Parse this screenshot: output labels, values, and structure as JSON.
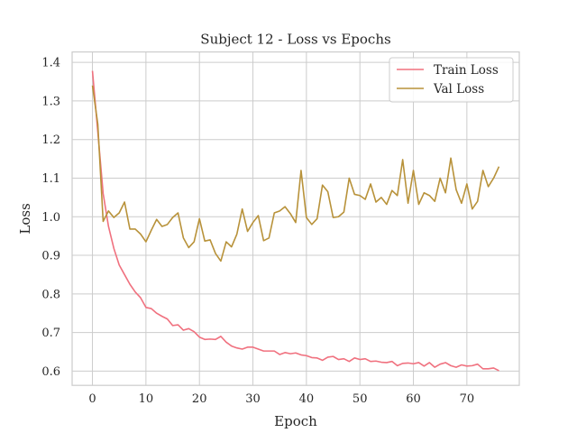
{
  "chart_data": {
    "type": "line",
    "title": "Subject 12 - Loss vs Epochs",
    "xlabel": "Epoch",
    "ylabel": "Loss",
    "xlim": [
      -3.8,
      79.8
    ],
    "ylim": [
      0.563,
      1.427
    ],
    "xticks": [
      0,
      10,
      20,
      30,
      40,
      50,
      60,
      70
    ],
    "yticks": [
      0.6,
      0.7,
      0.8,
      0.9,
      1.0,
      1.1,
      1.2,
      1.3,
      1.4
    ],
    "grid": true,
    "legend_position": "top-right",
    "x": [
      0,
      1,
      2,
      3,
      4,
      5,
      6,
      7,
      8,
      9,
      10,
      11,
      12,
      13,
      14,
      15,
      16,
      17,
      18,
      19,
      20,
      21,
      22,
      23,
      24,
      25,
      26,
      27,
      28,
      29,
      30,
      31,
      32,
      33,
      34,
      35,
      36,
      37,
      38,
      39,
      40,
      41,
      42,
      43,
      44,
      45,
      46,
      47,
      48,
      49,
      50,
      51,
      52,
      53,
      54,
      55,
      56,
      57,
      58,
      59,
      60,
      61,
      62,
      63,
      64,
      65,
      66,
      67,
      68,
      69,
      70,
      71,
      72,
      73,
      74,
      75,
      76
    ],
    "series": [
      {
        "name": "Train Loss",
        "color": "#f0717f",
        "values": [
          1.378,
          1.22,
          1.06,
          0.975,
          0.918,
          0.875,
          0.85,
          0.825,
          0.805,
          0.79,
          0.765,
          0.762,
          0.75,
          0.742,
          0.735,
          0.718,
          0.72,
          0.706,
          0.71,
          0.702,
          0.688,
          0.682,
          0.683,
          0.682,
          0.69,
          0.675,
          0.665,
          0.66,
          0.657,
          0.662,
          0.662,
          0.657,
          0.652,
          0.652,
          0.652,
          0.643,
          0.648,
          0.645,
          0.647,
          0.642,
          0.64,
          0.635,
          0.634,
          0.628,
          0.636,
          0.638,
          0.63,
          0.632,
          0.625,
          0.634,
          0.63,
          0.632,
          0.625,
          0.626,
          0.623,
          0.622,
          0.625,
          0.614,
          0.62,
          0.621,
          0.619,
          0.622,
          0.613,
          0.622,
          0.61,
          0.618,
          0.622,
          0.614,
          0.61,
          0.616,
          0.613,
          0.614,
          0.618,
          0.606,
          0.606,
          0.608,
          0.601
        ]
      },
      {
        "name": "Val Loss",
        "color": "#b8923a",
        "values": [
          1.34,
          1.24,
          0.988,
          1.015,
          0.998,
          1.01,
          1.038,
          0.968,
          0.968,
          0.955,
          0.935,
          0.965,
          0.993,
          0.975,
          0.98,
          0.998,
          1.01,
          0.945,
          0.92,
          0.935,
          0.995,
          0.937,
          0.94,
          0.905,
          0.885,
          0.935,
          0.922,
          0.955,
          1.02,
          0.962,
          0.985,
          1.003,
          0.938,
          0.945,
          1.01,
          1.015,
          1.026,
          1.008,
          0.985,
          1.12,
          0.998,
          0.98,
          0.995,
          1.082,
          1.065,
          0.998,
          1.0,
          1.012,
          1.1,
          1.058,
          1.055,
          1.045,
          1.085,
          1.038,
          1.05,
          1.032,
          1.068,
          1.055,
          1.148,
          1.035,
          1.12,
          1.032,
          1.062,
          1.055,
          1.04,
          1.1,
          1.062,
          1.152,
          1.07,
          1.035,
          1.085,
          1.02,
          1.04,
          1.12,
          1.078,
          1.1,
          1.13
        ]
      }
    ]
  }
}
